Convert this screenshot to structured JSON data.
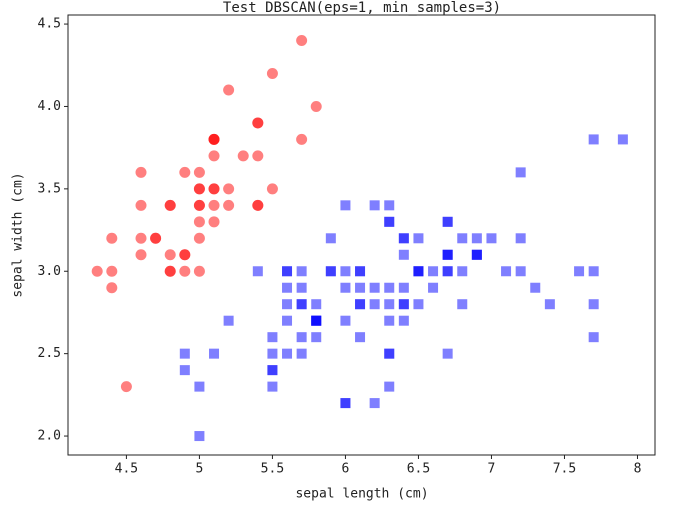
{
  "chart_data": {
    "type": "scatter",
    "title": "Test DBSCAN(eps=1, min_samples=3)",
    "xlabel": "sepal length (cm)",
    "ylabel": "sepal width (cm)",
    "xlim": [
      4.1,
      8.12
    ],
    "ylim": [
      1.885,
      4.555
    ],
    "xticks": [
      4.5,
      5.0,
      5.5,
      6.0,
      6.5,
      7.0,
      7.5,
      8.0
    ],
    "yticks": [
      2.0,
      2.5,
      3.0,
      3.5,
      4.0,
      4.5
    ],
    "grid": false,
    "alpha": 0.5,
    "series": [
      {
        "color": "#ff0000",
        "marker": "circle",
        "x": [
          5.1,
          4.9,
          4.7,
          4.6,
          5.0,
          5.4,
          4.6,
          5.0,
          4.4,
          4.9,
          5.4,
          4.8,
          4.8,
          4.3,
          5.8,
          5.7,
          5.4,
          5.1,
          5.7,
          5.1,
          5.4,
          5.1,
          4.6,
          5.1,
          4.8,
          5.0,
          5.0,
          5.2,
          5.2,
          4.7,
          4.8,
          5.4,
          5.2,
          5.5,
          4.9,
          5.0,
          5.5,
          4.9,
          4.4,
          5.1,
          5.0,
          4.5,
          4.4,
          5.0,
          5.1,
          4.8,
          5.1,
          4.6,
          5.3,
          5.0
        ],
        "y": [
          3.5,
          3.0,
          3.2,
          3.1,
          3.6,
          3.9,
          3.4,
          3.4,
          2.9,
          3.1,
          3.7,
          3.4,
          3.0,
          3.0,
          4.0,
          4.4,
          3.9,
          3.5,
          3.8,
          3.8,
          3.4,
          3.7,
          3.6,
          3.3,
          3.4,
          3.0,
          3.4,
          3.5,
          3.4,
          3.2,
          3.1,
          3.4,
          4.1,
          4.2,
          3.1,
          3.2,
          3.5,
          3.6,
          3.0,
          3.4,
          3.5,
          2.3,
          3.2,
          3.5,
          3.8,
          3.0,
          3.8,
          3.2,
          3.7,
          3.3
        ]
      },
      {
        "color": "#0000ff",
        "marker": "square",
        "x": [
          7.0,
          6.4,
          6.9,
          5.5,
          6.5,
          5.7,
          6.3,
          4.9,
          6.6,
          5.2,
          5.0,
          5.9,
          6.0,
          6.1,
          5.6,
          6.7,
          5.6,
          5.8,
          6.2,
          5.6,
          5.9,
          6.1,
          6.3,
          6.1,
          6.4,
          6.6,
          6.8,
          6.7,
          6.0,
          5.7,
          5.5,
          5.5,
          5.8,
          6.0,
          5.4,
          6.0,
          6.7,
          6.3,
          5.6,
          5.5,
          5.5,
          6.1,
          5.8,
          5.0,
          5.6,
          5.7,
          5.7,
          6.2,
          5.1,
          5.7,
          6.3,
          5.8,
          7.1,
          6.3,
          6.5,
          7.6,
          4.9,
          7.3,
          6.7,
          7.2,
          6.5,
          6.4,
          6.8,
          5.7,
          5.8,
          6.4,
          6.5,
          7.7,
          7.7,
          6.0,
          6.9,
          5.6,
          7.7,
          6.3,
          6.7,
          7.2,
          6.2,
          6.1,
          6.4,
          7.2,
          7.4,
          7.9,
          6.4,
          6.3,
          6.1,
          7.7,
          6.3,
          6.4,
          6.0,
          6.9,
          6.7,
          6.9,
          5.8,
          6.8,
          6.7,
          6.7,
          6.3,
          6.5,
          6.2,
          5.9
        ],
        "y": [
          3.2,
          3.2,
          3.1,
          2.3,
          2.8,
          2.8,
          3.3,
          2.4,
          2.9,
          2.7,
          2.0,
          3.0,
          2.2,
          2.9,
          2.9,
          3.1,
          3.0,
          2.7,
          2.2,
          2.5,
          3.2,
          2.8,
          2.5,
          2.8,
          2.9,
          3.0,
          2.8,
          3.0,
          2.9,
          2.6,
          2.4,
          2.4,
          2.7,
          2.7,
          3.0,
          3.4,
          3.1,
          2.3,
          3.0,
          2.5,
          2.6,
          3.0,
          2.6,
          2.3,
          2.7,
          3.0,
          2.9,
          2.9,
          2.5,
          2.8,
          3.3,
          2.7,
          3.0,
          2.9,
          3.0,
          3.0,
          2.5,
          2.9,
          2.5,
          3.6,
          3.2,
          2.7,
          3.0,
          2.5,
          2.8,
          3.2,
          3.0,
          3.8,
          2.6,
          2.2,
          3.2,
          2.8,
          2.8,
          2.7,
          3.3,
          3.2,
          2.8,
          3.0,
          2.8,
          3.0,
          2.8,
          3.8,
          2.8,
          2.8,
          2.6,
          3.0,
          3.4,
          3.1,
          3.0,
          3.1,
          3.1,
          3.1,
          2.7,
          3.2,
          3.3,
          3.0,
          2.5,
          3.0,
          3.4,
          3.0
        ]
      }
    ]
  }
}
